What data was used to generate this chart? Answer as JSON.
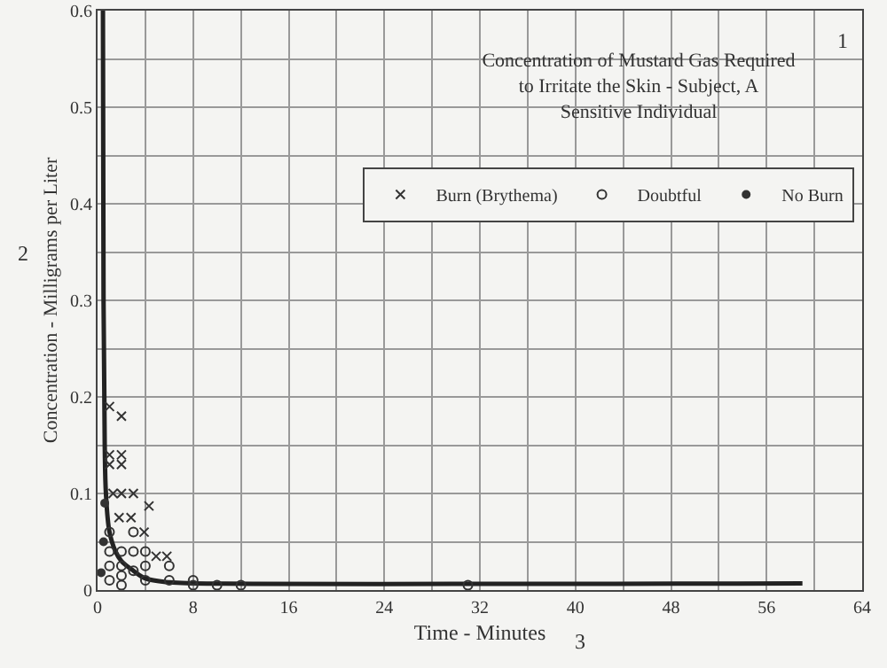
{
  "chart_data": {
    "type": "scatter",
    "title": "Concentration of Mustard Gas Required\nto Irritate the Skin - Subject, A\nSensitive Individual",
    "xlabel": "Time - Minutes",
    "ylabel": "Concentration - Milligrams per Liter",
    "annotations": [
      "1",
      "2",
      "3"
    ],
    "xlim": [
      0,
      64
    ],
    "xticks": [
      0,
      {
        "value": 4,
        "label": null
      },
      8,
      {
        "value": 12,
        "label": null
      },
      16,
      {
        "value": 20,
        "label": null
      },
      24,
      {
        "value": 28,
        "label": null
      },
      32,
      {
        "value": 36,
        "label": null
      },
      40,
      {
        "value": 44,
        "label": null
      },
      48,
      {
        "value": 52,
        "label": null
      },
      56,
      {
        "value": 60,
        "label": null
      },
      64
    ],
    "ylim": [
      0,
      0.6
    ],
    "yticks": [
      0,
      {
        "value": 0.05,
        "label": null
      },
      0.1,
      {
        "value": 0.15,
        "label": null
      },
      0.2,
      {
        "value": 0.25,
        "label": null
      },
      0.3,
      {
        "value": 0.35,
        "label": null
      },
      0.4,
      {
        "value": 0.45,
        "label": null
      },
      0.5,
      {
        "value": 0.55,
        "label": null
      },
      0.6
    ],
    "grid": true,
    "legend": "top right",
    "series": [
      {
        "name": "Burn (Brythema)",
        "color": "#333333",
        "marker": "cross",
        "x": [
          1,
          2,
          1,
          2,
          1,
          2,
          1.3,
          2,
          3,
          4.3,
          1.8,
          2.8,
          3.9,
          4.9,
          5.8
        ],
        "values": [
          0.19,
          0.18,
          0.14,
          0.14,
          0.13,
          0.13,
          0.1,
          0.1,
          0.1,
          0.087,
          0.075,
          0.075,
          0.06,
          0.035,
          0.035
        ]
      },
      {
        "name": "Doubtful",
        "color": "#333333",
        "marker": "circle",
        "x": [
          1,
          1,
          1,
          1,
          2,
          2,
          2,
          2,
          3,
          3,
          3,
          4,
          4,
          4,
          6,
          6,
          8,
          8,
          10,
          12,
          31
        ],
        "values": [
          0.06,
          0.04,
          0.025,
          0.01,
          0.04,
          0.025,
          0.015,
          0.005,
          0.06,
          0.04,
          0.02,
          0.04,
          0.025,
          0.01,
          0.025,
          0.01,
          0.01,
          0.005,
          0.005,
          0.005,
          0.005
        ]
      },
      {
        "name": "No Burn",
        "color": "#333333",
        "marker": "circle",
        "x": [
          0.3,
          0.5,
          0.6
        ],
        "values": [
          0.018,
          0.05,
          0.09
        ]
      },
      {
        "type": "line",
        "color": "#222222",
        "marker": "none",
        "x": [
          0.45,
          0.5,
          0.6,
          0.7,
          1,
          1.5,
          2,
          3,
          4,
          6,
          8,
          59
        ],
        "values": [
          0.6,
          0.3,
          0.15,
          0.1,
          0.06,
          0.04,
          0.03,
          0.02,
          0.012,
          0.008,
          0.007,
          0.007
        ]
      }
    ]
  }
}
